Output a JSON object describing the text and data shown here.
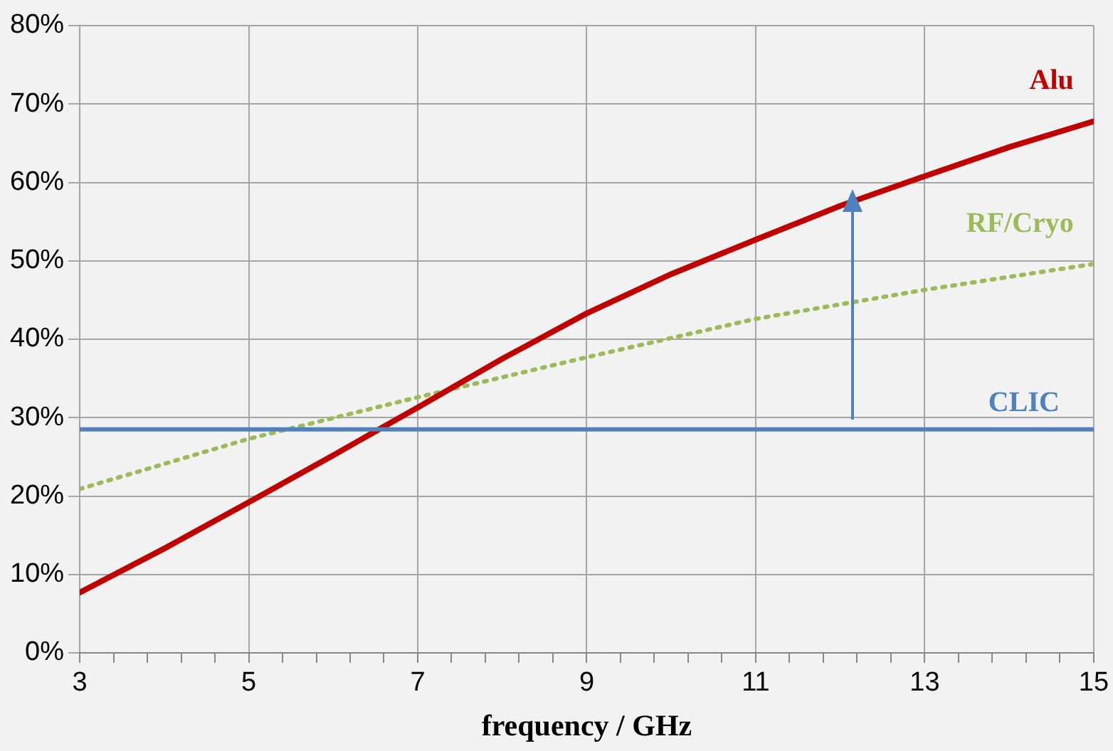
{
  "chart_data": {
    "type": "line",
    "xlabel": "frequency / GHz",
    "x": [
      3,
      4,
      5,
      6,
      7,
      8,
      9,
      10,
      11,
      12,
      13,
      14,
      15
    ],
    "series": [
      {
        "name": "Alu",
        "color": "#c00000",
        "values": [
          7.7,
          13.3,
          19.2,
          25.2,
          31.3,
          37.5,
          43.3,
          48.3,
          52.7,
          57,
          60.8,
          64.5,
          67.8
        ],
        "line_style": "solid"
      },
      {
        "name": "RF/Cryo",
        "color": "#9bbb59",
        "x": [
          3,
          5,
          7,
          9,
          11,
          13,
          15
        ],
        "values": [
          20.9,
          27.3,
          32.6,
          37.7,
          42.6,
          46.3,
          49.6
        ],
        "line_style": "dotted"
      }
    ],
    "ref_lines": [
      {
        "axis": "y",
        "value": 28.5,
        "label": "CLIC",
        "color": "#4f81bd"
      }
    ],
    "xlim": [
      3,
      15
    ],
    "xticks": [
      3,
      {
        "value": 3.4,
        "label": null
      },
      {
        "value": 3.8,
        "label": null
      },
      {
        "value": 4.2,
        "label": null
      },
      {
        "value": 4.6,
        "label": null
      },
      5,
      {
        "value": 5.4,
        "label": null
      },
      {
        "value": 5.8,
        "label": null
      },
      {
        "value": 6.2,
        "label": null
      },
      {
        "value": 6.6,
        "label": null
      },
      7,
      {
        "value": 7.4,
        "label": null
      },
      {
        "value": 7.8,
        "label": null
      },
      {
        "value": 8.2,
        "label": null
      },
      {
        "value": 8.6,
        "label": null
      },
      9,
      {
        "value": 9.4,
        "label": null
      },
      {
        "value": 9.8,
        "label": null
      },
      {
        "value": 10.2,
        "label": null
      },
      {
        "value": 10.6,
        "label": null
      },
      11,
      {
        "value": 11.4,
        "label": null
      },
      {
        "value": 11.8,
        "label": null
      },
      {
        "value": 12.2,
        "label": null
      },
      {
        "value": 12.6,
        "label": null
      },
      13,
      {
        "value": 13.4,
        "label": null
      },
      {
        "value": 13.8,
        "label": null
      },
      {
        "value": 14.2,
        "label": null
      },
      {
        "value": 14.6,
        "label": null
      },
      15
    ],
    "ylim": [
      0,
      80
    ],
    "yticks": [
      {
        "value": 0,
        "label": "0%"
      },
      {
        "value": 10,
        "label": "10%"
      },
      {
        "value": 20,
        "label": "20%"
      },
      {
        "value": 30,
        "label": "30%"
      },
      {
        "value": 40,
        "label": "40%"
      },
      {
        "value": 50,
        "label": "50%"
      },
      {
        "value": 60,
        "label": "60%"
      },
      {
        "value": 70,
        "label": "70%"
      },
      {
        "value": 80,
        "label": "80%"
      }
    ],
    "grid": true,
    "legend": false,
    "marker": "none"
  }
}
